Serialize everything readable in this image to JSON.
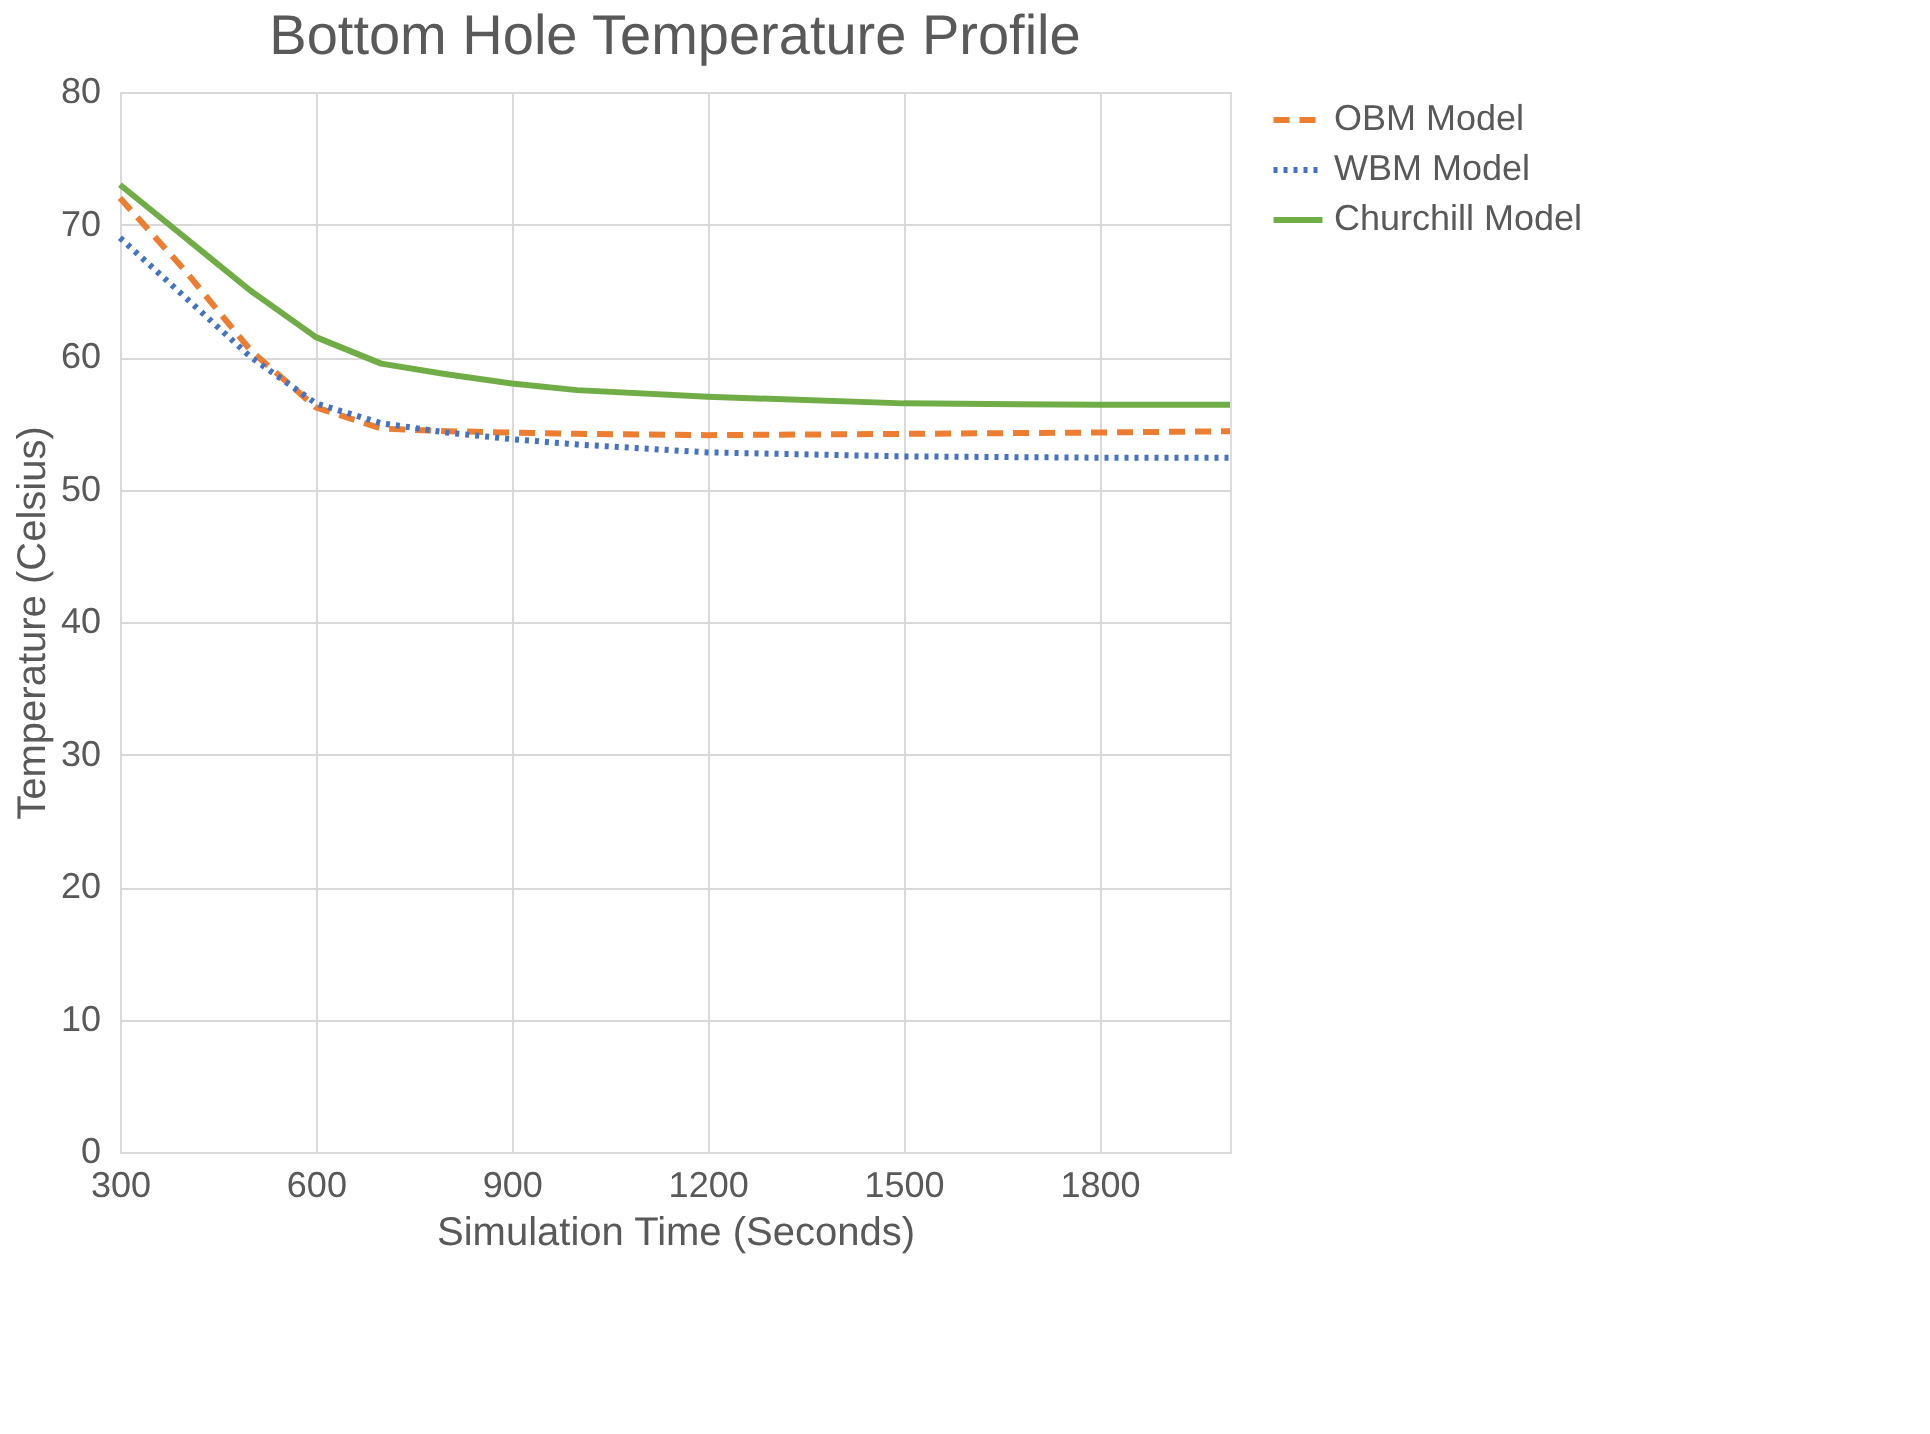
{
  "chart_data": {
    "type": "line",
    "title": "Bottom Hole Temperature Profile",
    "xlabel": "Simulation Time (Seconds)",
    "ylabel": "Temperature (Celsius)",
    "x": [
      300,
      400,
      500,
      600,
      700,
      800,
      900,
      1000,
      1200,
      1500,
      1800,
      2000
    ],
    "series": [
      {
        "name": "OBM Model",
        "color": "#ed7d31",
        "line_style": "dashed",
        "values": [
          72,
          66.5,
          60.5,
          56.2,
          54.6,
          54.4,
          54.3,
          54.2,
          54.1,
          54.2,
          54.3,
          54.4
        ]
      },
      {
        "name": "WBM Model",
        "color": "#4472c4",
        "line_style": "dotted",
        "values": [
          69,
          64.5,
          60,
          56.5,
          55,
          54.3,
          53.8,
          53.4,
          52.8,
          52.5,
          52.4,
          52.4
        ]
      },
      {
        "name": "Churchill Model",
        "color": "#70ad47",
        "line_style": "solid",
        "values": [
          73,
          69,
          65,
          61.5,
          59.5,
          58.7,
          58,
          57.5,
          57,
          56.5,
          56.4,
          56.4
        ]
      }
    ],
    "xlim": [
      300,
      2000
    ],
    "xticks": [
      300,
      600,
      900,
      1200,
      1500,
      1800
    ],
    "ylim": [
      0,
      80
    ],
    "yticks": [
      0,
      10,
      20,
      30,
      40,
      50,
      60,
      70,
      80
    ],
    "grid": true,
    "legend": "right",
    "marker": "none"
  }
}
